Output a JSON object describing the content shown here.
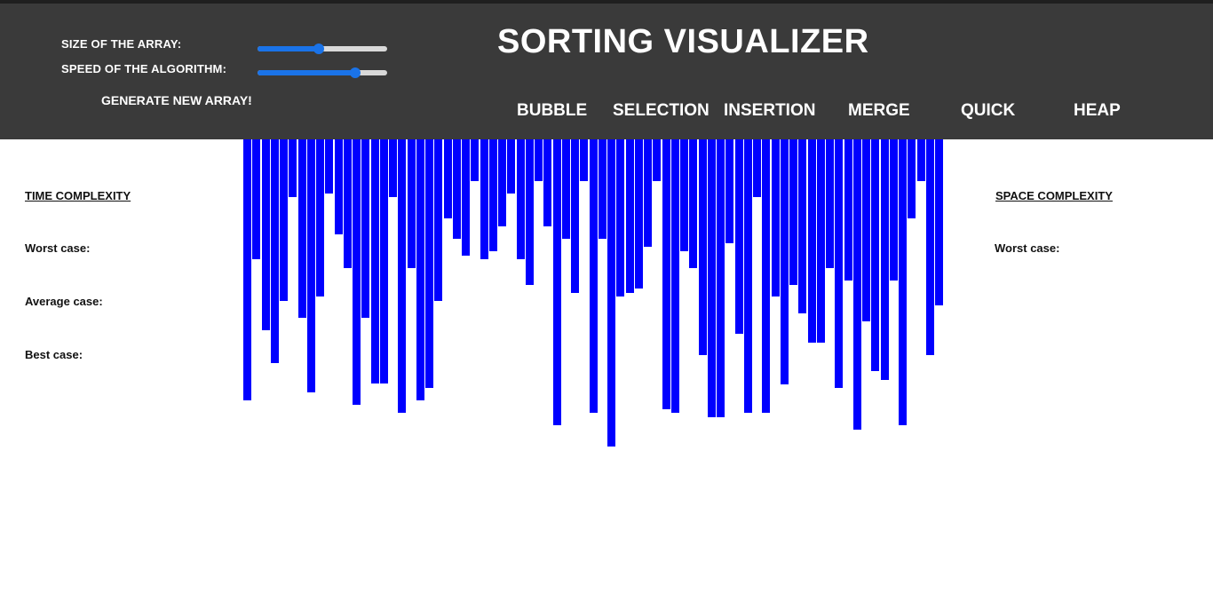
{
  "header": {
    "title": "SORTING VISUALIZER",
    "size_label": "SIZE OF THE ARRAY:",
    "speed_label": "SPEED OF THE ALGORITHM:",
    "size_value": 0.47,
    "speed_value": 0.75,
    "generate_label": "GENERATE NEW ARRAY!",
    "algorithms": [
      "BUBBLE",
      "SELECTION",
      "INSERTION",
      "MERGE",
      "QUICK",
      "HEAP"
    ]
  },
  "time_complexity": {
    "heading": "TIME COMPLEXITY",
    "worst": "Worst case:",
    "average": "Average case:",
    "best": "Best case:"
  },
  "space_complexity": {
    "heading": "SPACE COMPLEXITY",
    "worst": "Worst case:"
  },
  "colors": {
    "bar": "#0000ff",
    "header": "#3a3a3a",
    "accent": "#1a73e8"
  },
  "array_values": [
    294,
    135,
    215,
    252,
    182,
    65,
    201,
    285,
    177,
    61,
    107,
    145,
    299,
    201,
    275,
    275,
    65,
    308,
    145,
    294,
    280,
    182,
    89,
    112,
    131,
    47,
    135,
    126,
    98,
    61,
    135,
    164,
    47,
    98,
    322,
    112,
    173,
    47,
    308,
    112,
    346,
    177,
    173,
    168,
    121,
    47,
    304,
    308,
    126,
    145,
    243,
    313,
    313,
    117,
    219,
    308,
    65,
    308,
    177,
    276,
    164,
    196,
    229,
    229,
    145,
    280,
    159,
    327,
    205,
    261,
    271,
    159,
    322,
    89,
    47,
    243,
    187
  ]
}
